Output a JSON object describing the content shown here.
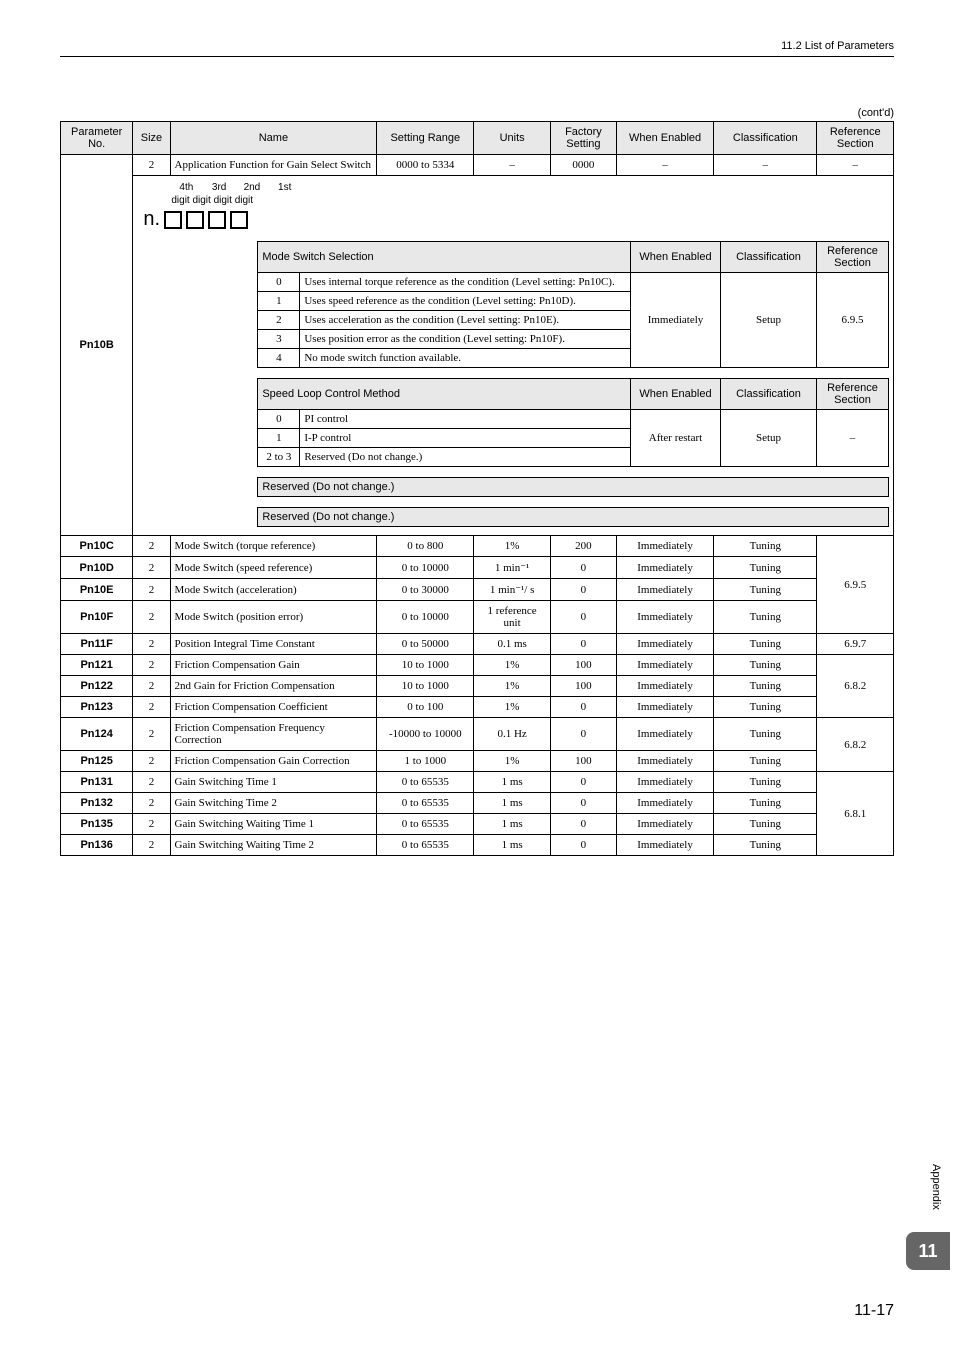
{
  "header": {
    "section": "11.2  List of Parameters"
  },
  "contd": "(cont'd)",
  "columns": {
    "param": "Parameter No.",
    "size": "Size",
    "name": "Name",
    "setting": "Setting Range",
    "units": "Units",
    "factory": "Factory Setting",
    "when": "When Enabled",
    "class": "Classification",
    "ref": "Reference Section"
  },
  "pn10b": {
    "id": "Pn10B",
    "first_row": {
      "size": "2",
      "name": "Application Function for Gain Select Switch",
      "setting": "0000 to 5334",
      "units": "–",
      "factory": "0000",
      "when": "–",
      "class": "–",
      "ref": "–"
    },
    "digits": {
      "d4": "4th",
      "d3": "3rd",
      "d2": "2nd",
      "d1": "1st",
      "label": "digit digit digit digit",
      "n": "n."
    },
    "modeSwitch": {
      "title": "Mode Switch Selection",
      "when_hdr": "When Enabled",
      "class_hdr": "Classification",
      "ref_hdr": "Reference Section",
      "rows": [
        {
          "k": "0",
          "v": "Uses internal torque reference as the condition (Level setting: Pn10C)."
        },
        {
          "k": "1",
          "v": "Uses speed reference as the condition (Level setting: Pn10D)."
        },
        {
          "k": "2",
          "v": "Uses acceleration as the condition (Level setting: Pn10E)."
        },
        {
          "k": "3",
          "v": "Uses position error as the condition (Level setting: Pn10F)."
        },
        {
          "k": "4",
          "v": "No mode switch function available."
        }
      ],
      "when": "Immediately",
      "class": "Setup",
      "ref": "6.9.5"
    },
    "speedLoop": {
      "title": "Speed Loop Control Method",
      "when_hdr": "When Enabled",
      "class_hdr": "Classification",
      "ref_hdr": "Reference Section",
      "rows": [
        {
          "k": "0",
          "v": "PI control"
        },
        {
          "k": "1",
          "v": "I-P control"
        },
        {
          "k": "2 to 3",
          "v": "Reserved (Do not change.)"
        }
      ],
      "when": "After restart",
      "class": "Setup",
      "ref": "–"
    },
    "reserved1": "Reserved (Do not change.)",
    "reserved2": "Reserved (Do not change.)"
  },
  "rows": [
    {
      "id": "Pn10C",
      "size": "2",
      "name": "Mode Switch (torque reference)",
      "setting": "0 to 800",
      "units": "1%",
      "factory": "200",
      "when": "Immediately",
      "class": "Tuning",
      "refSpan": 4,
      "ref": "6.9.5"
    },
    {
      "id": "Pn10D",
      "size": "2",
      "name": "Mode Switch (speed reference)",
      "setting": "0 to 10000",
      "units": "1 min⁻¹",
      "factory": "0",
      "when": "Immediately",
      "class": "Tuning"
    },
    {
      "id": "Pn10E",
      "size": "2",
      "name": "Mode Switch (acceleration)",
      "setting": "0 to 30000",
      "units": "1 min⁻¹/ s",
      "factory": "0",
      "when": "Immediately",
      "class": "Tuning"
    },
    {
      "id": "Pn10F",
      "size": "2",
      "name": "Mode Switch (position error)",
      "setting": "0 to 10000",
      "units": "1 reference unit",
      "factory": "0",
      "when": "Immediately",
      "class": "Tuning"
    },
    {
      "id": "Pn11F",
      "size": "2",
      "name": "Position Integral Time Constant",
      "setting": "0 to 50000",
      "units": "0.1 ms",
      "factory": "0",
      "when": "Immediately",
      "class": "Tuning",
      "ref": "6.9.7"
    },
    {
      "id": "Pn121",
      "size": "2",
      "name": "Friction Compensation Gain",
      "setting": "10 to 1000",
      "units": "1%",
      "factory": "100",
      "when": "Immediately",
      "class": "Tuning",
      "refSpan": 3,
      "ref": "6.8.2"
    },
    {
      "id": "Pn122",
      "size": "2",
      "name": "2nd Gain for Friction Compensation",
      "setting": "10 to 1000",
      "units": "1%",
      "factory": "100",
      "when": "Immediately",
      "class": "Tuning"
    },
    {
      "id": "Pn123",
      "size": "2",
      "name": "Friction Compensation Coefficient",
      "setting": "0 to 100",
      "units": "1%",
      "factory": "0",
      "when": "Immediately",
      "class": "Tuning"
    },
    {
      "id": "Pn124",
      "size": "2",
      "name": "Friction Compensation Frequency Correction",
      "setting": "-10000 to 10000",
      "units": "0.1 Hz",
      "factory": "0",
      "when": "Immediately",
      "class": "Tuning",
      "refSpan": 2,
      "ref": "6.8.2"
    },
    {
      "id": "Pn125",
      "size": "2",
      "name": "Friction Compensation Gain Correction",
      "setting": "1 to 1000",
      "units": "1%",
      "factory": "100",
      "when": "Immediately",
      "class": "Tuning"
    },
    {
      "id": "Pn131",
      "size": "2",
      "name": "Gain Switching Time 1",
      "setting": "0 to 65535",
      "units": "1 ms",
      "factory": "0",
      "when": "Immediately",
      "class": "Tuning",
      "refSpan": 4,
      "ref": "6.8.1"
    },
    {
      "id": "Pn132",
      "size": "2",
      "name": "Gain Switching Time 2",
      "setting": "0 to 65535",
      "units": "1 ms",
      "factory": "0",
      "when": "Immediately",
      "class": "Tuning"
    },
    {
      "id": "Pn135",
      "size": "2",
      "name": "Gain Switching Waiting Time 1",
      "setting": "0 to 65535",
      "units": "1 ms",
      "factory": "0",
      "when": "Immediately",
      "class": "Tuning"
    },
    {
      "id": "Pn136",
      "size": "2",
      "name": "Gain Switching Waiting Time 2",
      "setting": "0 to 65535",
      "units": "1 ms",
      "factory": "0",
      "when": "Immediately",
      "class": "Tuning"
    }
  ],
  "side": {
    "appendix": "Appendix",
    "chapter": "11"
  },
  "pageNum": "11-17"
}
